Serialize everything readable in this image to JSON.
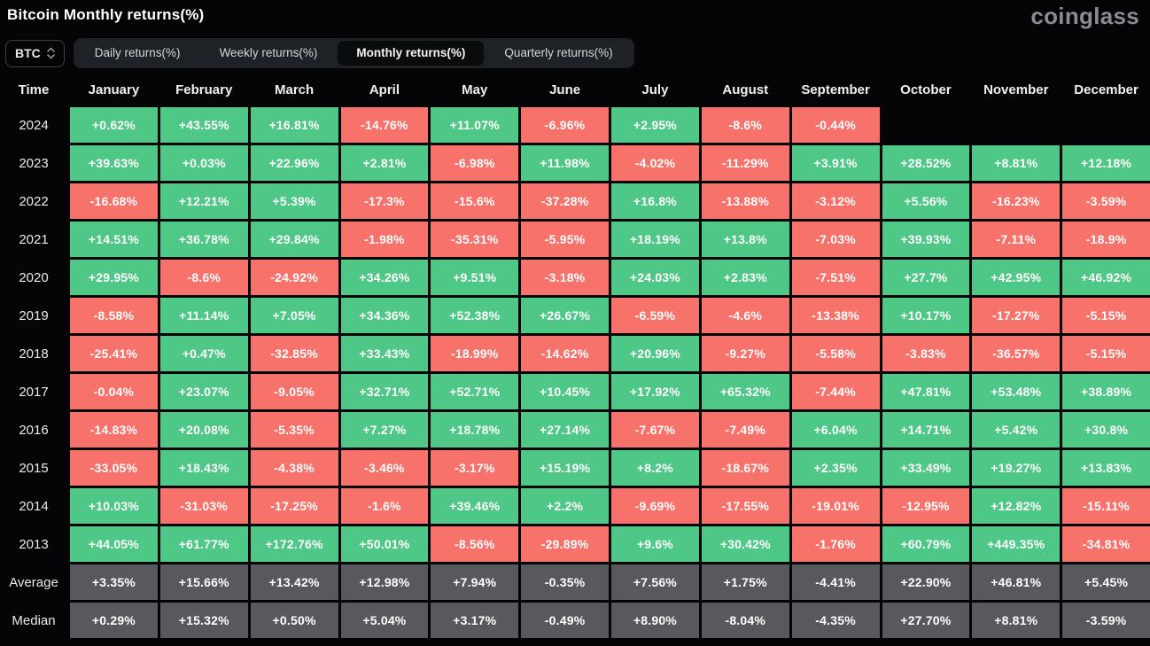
{
  "page": {
    "title": "Bitcoin Monthly returns(%)",
    "logo_text": "coinglass"
  },
  "controls": {
    "coin": "BTC",
    "tabs": [
      {
        "label": "Daily returns(%)",
        "active": false
      },
      {
        "label": "Weekly returns(%)",
        "active": false
      },
      {
        "label": "Monthly returns(%)",
        "active": true
      },
      {
        "label": "Quarterly returns(%)",
        "active": false
      }
    ]
  },
  "colors": {
    "positive": "#4fc887",
    "negative": "#f7726b",
    "summary": "#58595c",
    "background": "#050507",
    "tabstrip": "#1e2126",
    "active_tab": "#0a0b0d",
    "logo": "#898d93"
  },
  "chart_data": {
    "type": "heatmap",
    "title": "Bitcoin Monthly returns(%)",
    "columns": [
      "Time",
      "January",
      "February",
      "March",
      "April",
      "May",
      "June",
      "July",
      "August",
      "September",
      "October",
      "November",
      "December"
    ],
    "rows": [
      {
        "label": "2024",
        "kind": "year",
        "values": [
          "+0.62%",
          "+43.55%",
          "+16.81%",
          "-14.76%",
          "+11.07%",
          "-6.96%",
          "+2.95%",
          "-8.6%",
          "-0.44%",
          "",
          "",
          ""
        ]
      },
      {
        "label": "2023",
        "kind": "year",
        "values": [
          "+39.63%",
          "+0.03%",
          "+22.96%",
          "+2.81%",
          "-6.98%",
          "+11.98%",
          "-4.02%",
          "-11.29%",
          "+3.91%",
          "+28.52%",
          "+8.81%",
          "+12.18%"
        ]
      },
      {
        "label": "2022",
        "kind": "year",
        "values": [
          "-16.68%",
          "+12.21%",
          "+5.39%",
          "-17.3%",
          "-15.6%",
          "-37.28%",
          "+16.8%",
          "-13.88%",
          "-3.12%",
          "+5.56%",
          "-16.23%",
          "-3.59%"
        ]
      },
      {
        "label": "2021",
        "kind": "year",
        "values": [
          "+14.51%",
          "+36.78%",
          "+29.84%",
          "-1.98%",
          "-35.31%",
          "-5.95%",
          "+18.19%",
          "+13.8%",
          "-7.03%",
          "+39.93%",
          "-7.11%",
          "-18.9%"
        ]
      },
      {
        "label": "2020",
        "kind": "year",
        "values": [
          "+29.95%",
          "-8.6%",
          "-24.92%",
          "+34.26%",
          "+9.51%",
          "-3.18%",
          "+24.03%",
          "+2.83%",
          "-7.51%",
          "+27.7%",
          "+42.95%",
          "+46.92%"
        ]
      },
      {
        "label": "2019",
        "kind": "year",
        "values": [
          "-8.58%",
          "+11.14%",
          "+7.05%",
          "+34.36%",
          "+52.38%",
          "+26.67%",
          "-6.59%",
          "-4.6%",
          "-13.38%",
          "+10.17%",
          "-17.27%",
          "-5.15%"
        ]
      },
      {
        "label": "2018",
        "kind": "year",
        "values": [
          "-25.41%",
          "+0.47%",
          "-32.85%",
          "+33.43%",
          "-18.99%",
          "-14.62%",
          "+20.96%",
          "-9.27%",
          "-5.58%",
          "-3.83%",
          "-36.57%",
          "-5.15%"
        ]
      },
      {
        "label": "2017",
        "kind": "year",
        "values": [
          "-0.04%",
          "+23.07%",
          "-9.05%",
          "+32.71%",
          "+52.71%",
          "+10.45%",
          "+17.92%",
          "+65.32%",
          "-7.44%",
          "+47.81%",
          "+53.48%",
          "+38.89%"
        ]
      },
      {
        "label": "2016",
        "kind": "year",
        "values": [
          "-14.83%",
          "+20.08%",
          "-5.35%",
          "+7.27%",
          "+18.78%",
          "+27.14%",
          "-7.67%",
          "-7.49%",
          "+6.04%",
          "+14.71%",
          "+5.42%",
          "+30.8%"
        ]
      },
      {
        "label": "2015",
        "kind": "year",
        "values": [
          "-33.05%",
          "+18.43%",
          "-4.38%",
          "-3.46%",
          "-3.17%",
          "+15.19%",
          "+8.2%",
          "-18.67%",
          "+2.35%",
          "+33.49%",
          "+19.27%",
          "+13.83%"
        ]
      },
      {
        "label": "2014",
        "kind": "year",
        "values": [
          "+10.03%",
          "-31.03%",
          "-17.25%",
          "-1.6%",
          "+39.46%",
          "+2.2%",
          "-9.69%",
          "-17.55%",
          "-19.01%",
          "-12.95%",
          "+12.82%",
          "-15.11%"
        ]
      },
      {
        "label": "2013",
        "kind": "year",
        "values": [
          "+44.05%",
          "+61.77%",
          "+172.76%",
          "+50.01%",
          "-8.56%",
          "-29.89%",
          "+9.6%",
          "+30.42%",
          "-1.76%",
          "+60.79%",
          "+449.35%",
          "-34.81%"
        ]
      },
      {
        "label": "Average",
        "kind": "summary",
        "values": [
          "+3.35%",
          "+15.66%",
          "+13.42%",
          "+12.98%",
          "+7.94%",
          "-0.35%",
          "+7.56%",
          "+1.75%",
          "-4.41%",
          "+22.90%",
          "+46.81%",
          "+5.45%"
        ]
      },
      {
        "label": "Median",
        "kind": "summary",
        "values": [
          "+0.29%",
          "+15.32%",
          "+0.50%",
          "+5.04%",
          "+3.17%",
          "-0.49%",
          "+8.90%",
          "-8.04%",
          "-4.35%",
          "+27.70%",
          "+8.81%",
          "-3.59%"
        ]
      }
    ]
  }
}
